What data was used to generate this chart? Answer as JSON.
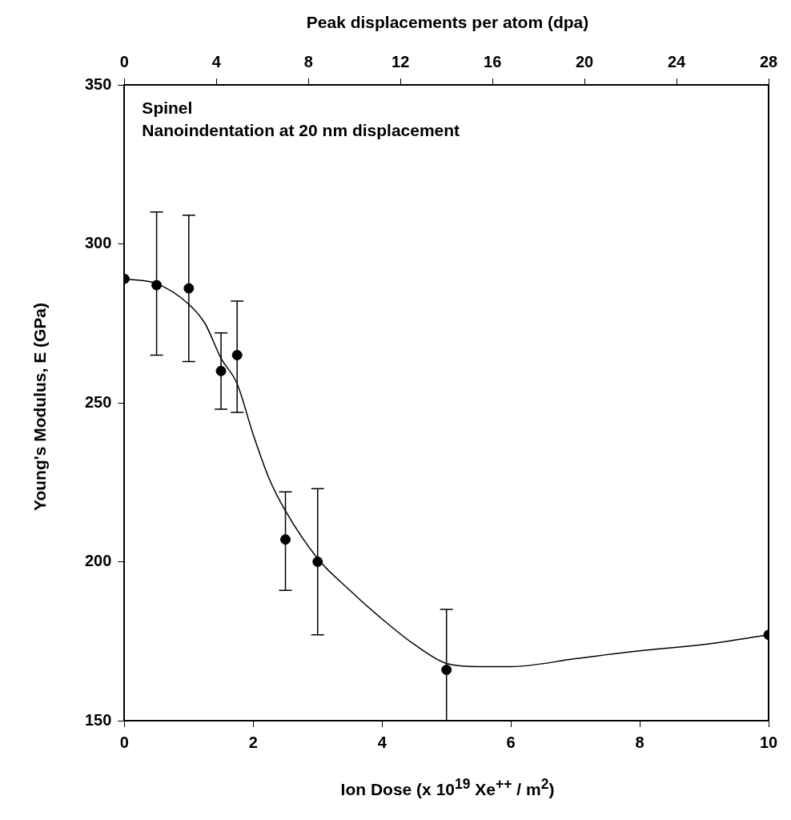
{
  "chart_data": {
    "type": "scatter",
    "xlabel": "Ion Dose (x 10$^{19}$ Xe$^{++}$ / m$^{2}$)",
    "ylabel": "Young's Modulus, E (GPa)",
    "x2label": "Peak displacements per atom (dpa)",
    "annotations": [
      "Spinel",
      "Nanoindentation at 20 nm displacement"
    ],
    "xlim": [
      0,
      10
    ],
    "xticks": [
      0,
      2,
      4,
      6,
      8,
      10
    ],
    "x2lim": [
      0,
      28
    ],
    "x2ticks": [
      0,
      4,
      8,
      12,
      16,
      20,
      24,
      28
    ],
    "ylim": [
      150,
      350
    ],
    "yticks": [
      150,
      200,
      250,
      300,
      350
    ],
    "grid": false,
    "legend": false,
    "series": [
      {
        "color": "#000000",
        "marker": "circle",
        "x": [
          0,
          0.5,
          1,
          1.5,
          1.75,
          2.5,
          3,
          5,
          10
        ],
        "values": [
          289,
          287,
          286,
          260,
          265,
          207,
          200,
          166,
          177
        ],
        "errors": [
          null,
          [
            265,
            310
          ],
          [
            263,
            309
          ],
          [
            248,
            272
          ],
          [
            247,
            282
          ],
          [
            191,
            222
          ],
          [
            177,
            223
          ],
          [
            150,
            185
          ],
          null
        ]
      },
      {
        "type": "line",
        "color": "#000000",
        "marker": "none",
        "line_style": "solid",
        "x": [
          0,
          0.5,
          1,
          1.25,
          1.5,
          1.75,
          2,
          2.25,
          2.5,
          3,
          3.5,
          4,
          4.5,
          5,
          5.5,
          6,
          7,
          8,
          9,
          10
        ],
        "values": [
          289,
          287.5,
          281,
          275,
          264,
          256,
          240,
          226,
          216,
          201,
          191,
          182,
          174,
          168,
          167,
          167,
          169.5,
          172,
          174,
          177
        ]
      }
    ]
  }
}
